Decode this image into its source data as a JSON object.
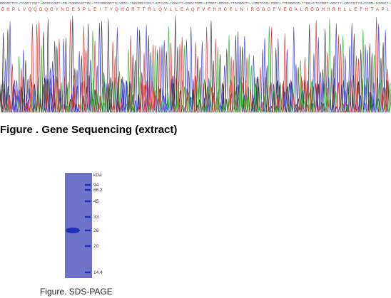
{
  "gene_sequencing": {
    "caption": "Figure . Gene Sequencing (extract)",
    "base_colors": {
      "A": "#2db82d",
      "C": "#3a3adf",
      "G": "#333333",
      "T": "#e03030"
    },
    "dna_sequence": "GGCGCTCCATCGGTTGTTAGCGCCGGTACGATGGCCGTTGCATCCGGCGGTTCAGCCATGGCGGTCGCTAGTCCGATCGGTTACGCCTGGCATCGGTAGCCGATTGCGGCTAACGGTCCGATGGCATTCGGCCGATTGGACTCCGGTAGGCTTACGCCGTTGACCGGATCGGCTA",
    "protein_sequence": "GHPLVQQGQGYNDESPLEITYQHGRTTRLQVLLEAQFVFHHCFLNIRGGGFVEGALRGDHHRHLLEFHTAPL"
  },
  "sds_page": {
    "caption": "Figure. SDS-PAGE",
    "unit_label": "kDa",
    "marker_labels": [
      "94",
      "66.2",
      "45",
      "33",
      "26",
      "20",
      "14.4"
    ],
    "colors": {
      "gel": "#6e72c8",
      "band": "#1f2fb8",
      "marker": "#1f2fb8"
    }
  }
}
